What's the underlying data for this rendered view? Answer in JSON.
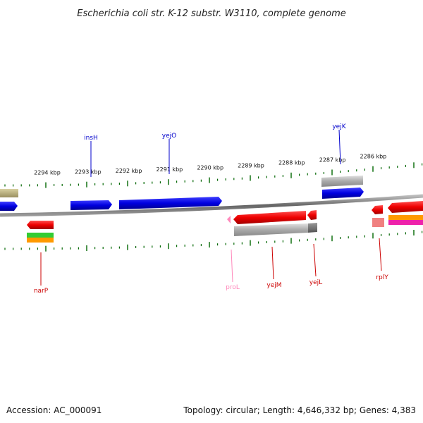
{
  "title": "Escherichia coli str. K-12 substr. W3110, complete genome",
  "footer": {
    "accession": "Accession: AC_000091",
    "summary": "Topology: circular; Length: 4,646,332 bp; Genes: 4,383"
  },
  "scale_labels": [
    "2294 kbp",
    "2293 kbp",
    "2292 kbp",
    "2291 kbp",
    "2290 kbp",
    "2289 kbp",
    "2288 kbp",
    "2287 kbp",
    "2286 kbp"
  ],
  "genes": [
    {
      "name": "insH",
      "strand": "forward",
      "color": "#0000cc"
    },
    {
      "name": "yejO",
      "strand": "forward",
      "color": "#0000cc"
    },
    {
      "name": "yejK",
      "strand": "forward",
      "color": "#0000cc"
    },
    {
      "name": "narP",
      "strand": "reverse",
      "color": "#cc0000"
    },
    {
      "name": "proL",
      "strand": "reverse",
      "color": "#ff88bb"
    },
    {
      "name": "yejM",
      "strand": "reverse",
      "color": "#cc0000"
    },
    {
      "name": "yejL",
      "strand": "reverse",
      "color": "#cc0000"
    },
    {
      "name": "rplY",
      "strand": "reverse",
      "color": "#cc0000"
    }
  ],
  "colors": {
    "forward": "#0000ee",
    "reverse": "#ee0000",
    "ticks": "#006600",
    "backbone": "#888888"
  }
}
